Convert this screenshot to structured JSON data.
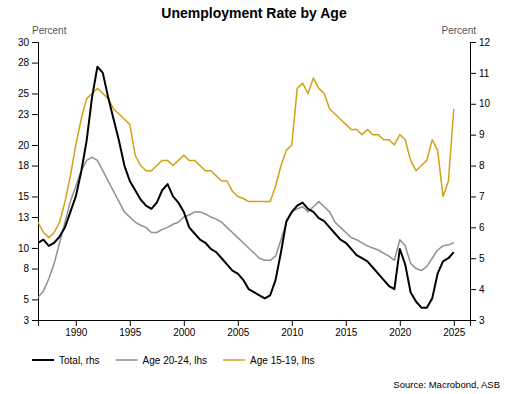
{
  "chart_data": {
    "type": "line",
    "title": "Unemployment Rate by Age",
    "ylabel": "Percent",
    "y2label": "Percent",
    "annotations": [
      "Source: Macrobond, ASB"
    ],
    "grid": false,
    "legend": "bottom",
    "xlim": [
      1986.5,
      2026.5
    ],
    "xticks": [
      1990,
      1995,
      2000,
      2005,
      2010,
      2015,
      2020,
      2025
    ],
    "ylim": [
      3,
      30
    ],
    "yticks": [
      3,
      5,
      8,
      10,
      13,
      15,
      18,
      20,
      23,
      25,
      28,
      30
    ],
    "y2lim": [
      3,
      12
    ],
    "y2ticks": [
      3,
      4,
      5,
      6,
      7,
      8,
      9,
      10,
      11,
      12
    ],
    "x": [
      1986.5,
      1987.0,
      1987.5,
      1988.0,
      1988.5,
      1989.0,
      1989.5,
      1990.0,
      1990.5,
      1991.0,
      1991.5,
      1992.0,
      1992.5,
      1993.0,
      1993.5,
      1994.0,
      1994.5,
      1995.0,
      1995.5,
      1996.0,
      1996.5,
      1997.0,
      1997.5,
      1998.0,
      1998.5,
      1999.0,
      1999.5,
      2000.0,
      2000.5,
      2001.0,
      2001.5,
      2002.0,
      2002.5,
      2003.0,
      2003.5,
      2004.0,
      2004.5,
      2005.0,
      2005.5,
      2006.0,
      2006.5,
      2007.0,
      2007.5,
      2008.0,
      2008.5,
      2009.0,
      2009.5,
      2010.0,
      2010.5,
      2011.0,
      2011.5,
      2012.0,
      2012.5,
      2013.0,
      2013.5,
      2014.0,
      2014.5,
      2015.0,
      2015.5,
      2016.0,
      2016.5,
      2017.0,
      2017.5,
      2018.0,
      2018.5,
      2019.0,
      2019.5,
      2020.0,
      2020.5,
      2021.0,
      2021.5,
      2022.0,
      2022.5,
      2023.0,
      2023.5,
      2024.0,
      2024.5,
      2025.0
    ],
    "series": [
      {
        "name": "Total, rhs",
        "color": "#000000",
        "axis": "y2",
        "values": [
          5.5,
          5.6,
          5.4,
          5.5,
          5.7,
          6.0,
          6.5,
          7.0,
          7.8,
          8.8,
          10.2,
          11.2,
          11.0,
          10.2,
          9.5,
          8.8,
          8.0,
          7.5,
          7.2,
          6.9,
          6.7,
          6.6,
          6.8,
          7.2,
          7.4,
          7.0,
          6.8,
          6.5,
          6.0,
          5.8,
          5.6,
          5.5,
          5.3,
          5.2,
          5.0,
          4.8,
          4.6,
          4.5,
          4.3,
          4.0,
          3.9,
          3.8,
          3.7,
          3.8,
          4.3,
          5.2,
          6.2,
          6.5,
          6.7,
          6.8,
          6.6,
          6.5,
          6.3,
          6.2,
          6.0,
          5.8,
          5.6,
          5.5,
          5.3,
          5.1,
          5.0,
          4.9,
          4.7,
          4.5,
          4.3,
          4.1,
          4.0,
          5.3,
          4.8,
          3.9,
          3.6,
          3.4,
          3.4,
          3.7,
          4.5,
          4.9,
          5.0,
          5.2
        ]
      },
      {
        "name": "Age 20-24, lhs",
        "color": "#909090",
        "axis": "y",
        "values": [
          5.2,
          5.8,
          7.0,
          8.5,
          10.5,
          12.5,
          14.5,
          16.0,
          17.5,
          18.5,
          18.8,
          18.5,
          17.5,
          16.5,
          15.5,
          14.5,
          13.5,
          13.0,
          12.5,
          12.2,
          12.0,
          11.5,
          11.5,
          11.8,
          12.0,
          12.3,
          12.5,
          13.0,
          13.2,
          13.5,
          13.5,
          13.3,
          13.0,
          12.8,
          12.5,
          12.0,
          11.5,
          11.0,
          10.5,
          10.0,
          9.5,
          9.0,
          8.8,
          8.8,
          9.2,
          10.8,
          12.5,
          13.5,
          13.8,
          14.0,
          13.5,
          14.0,
          14.5,
          14.0,
          13.5,
          12.5,
          12.0,
          11.5,
          11.0,
          10.8,
          10.5,
          10.2,
          10.0,
          9.8,
          9.5,
          9.2,
          8.8,
          10.8,
          10.2,
          8.5,
          8.0,
          7.8,
          8.2,
          9.0,
          9.8,
          10.2,
          10.3,
          10.5
        ]
      },
      {
        "name": "Age 15-19, lhs",
        "color": "#D4A017",
        "axis": "y",
        "values": [
          12.5,
          11.5,
          11.0,
          11.5,
          12.5,
          14.5,
          17.0,
          20.0,
          22.5,
          24.5,
          25.0,
          25.5,
          25.0,
          24.5,
          23.5,
          23.0,
          22.5,
          22.0,
          19.0,
          18.0,
          17.5,
          17.5,
          18.0,
          18.5,
          18.5,
          18.0,
          18.5,
          19.0,
          18.5,
          18.5,
          18.0,
          17.5,
          17.5,
          17.0,
          16.5,
          16.5,
          15.5,
          15.0,
          14.8,
          14.5,
          14.5,
          14.5,
          14.5,
          14.5,
          16.0,
          18.0,
          19.5,
          20.0,
          25.5,
          26.0,
          25.0,
          26.5,
          25.5,
          25.0,
          23.5,
          23.0,
          22.5,
          22.0,
          21.5,
          21.5,
          21.0,
          21.5,
          21.0,
          21.0,
          20.5,
          20.5,
          20.0,
          21.0,
          20.5,
          18.5,
          17.5,
          18.0,
          18.5,
          20.5,
          19.5,
          15.0,
          16.5,
          23.5
        ]
      }
    ]
  }
}
